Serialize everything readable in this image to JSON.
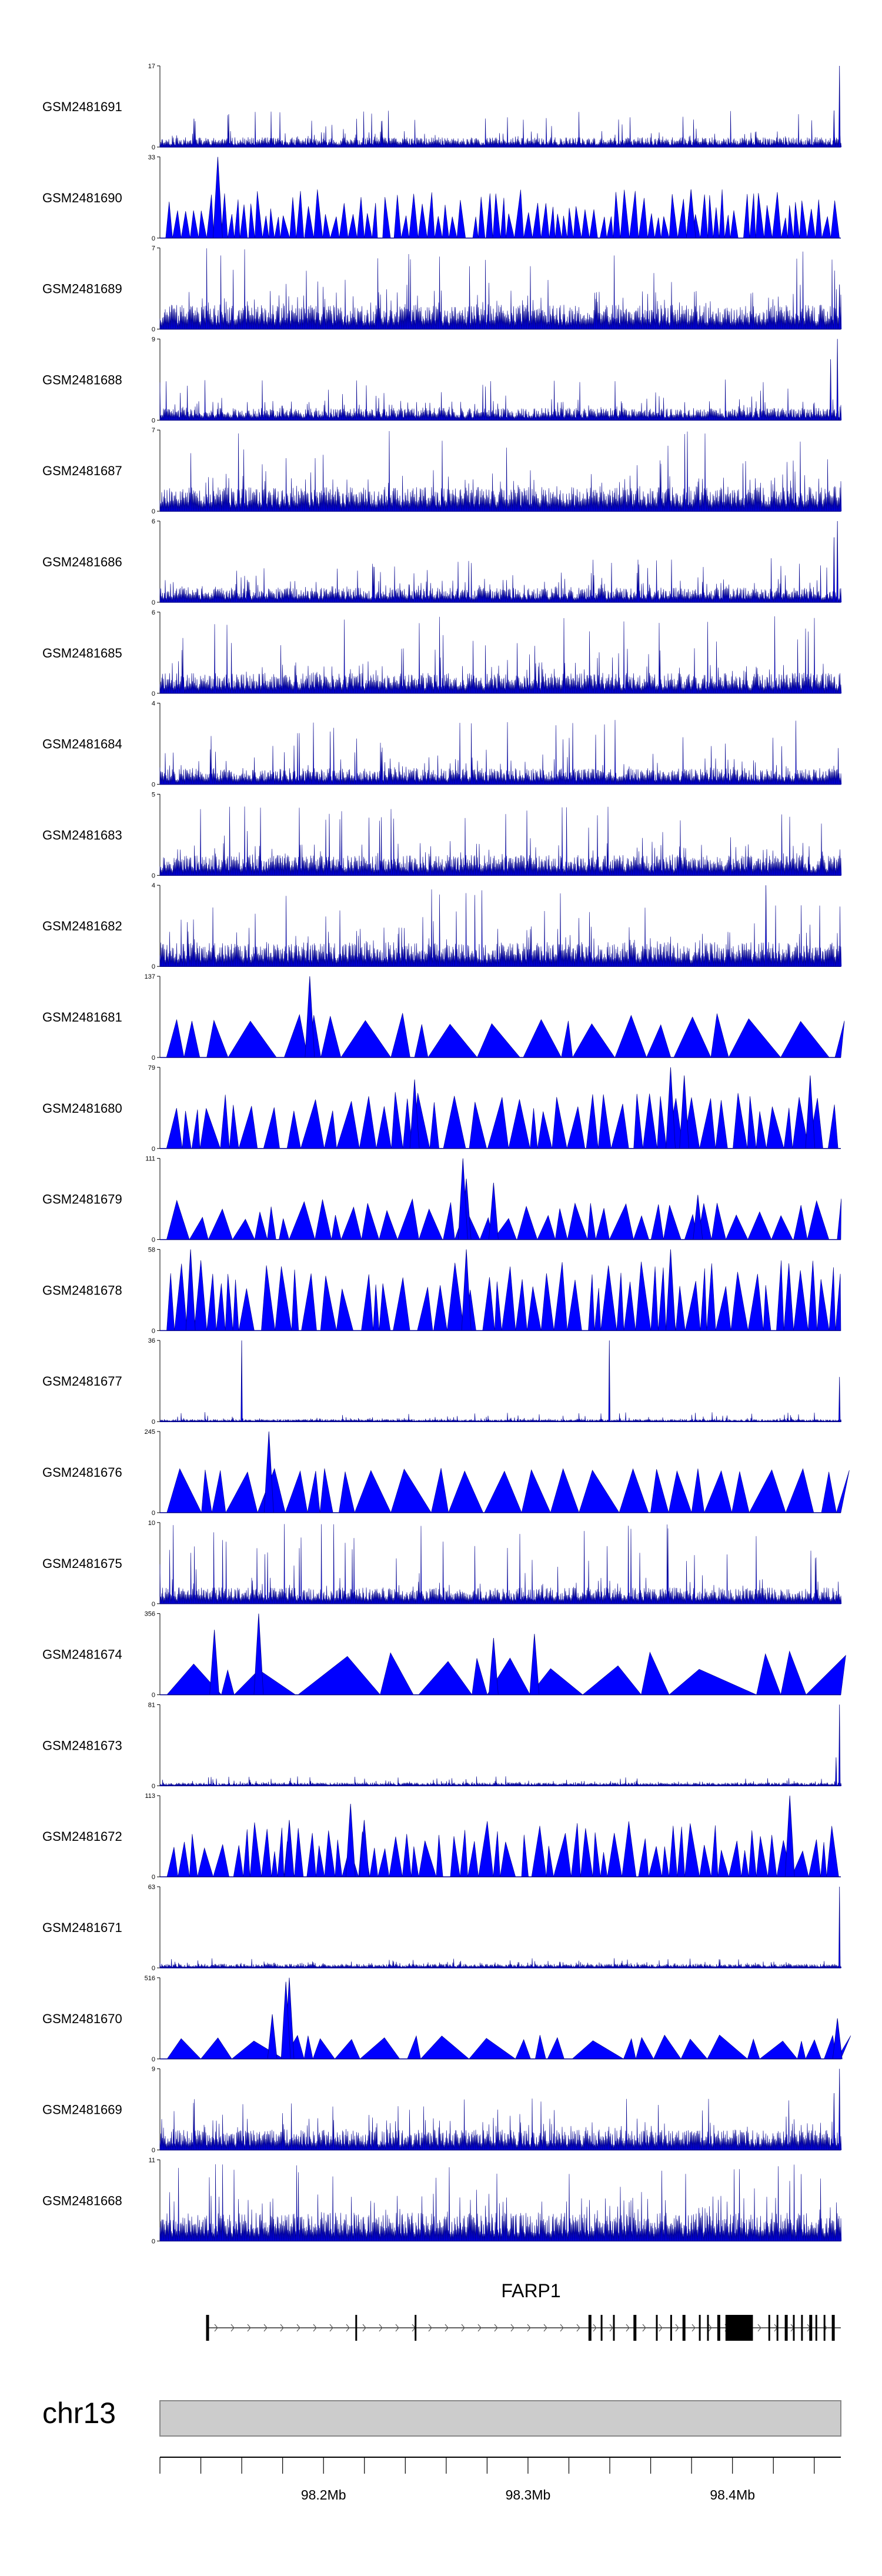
{
  "chart_data": {
    "type": "genome-browser-coverage",
    "chromosome": "chr13",
    "region_mb": [
      98.12,
      98.453
    ],
    "genome_axis": {
      "ticks_mb": [
        98.12,
        98.14,
        98.16,
        98.18,
        98.2,
        98.22,
        98.24,
        98.26,
        98.28,
        98.3,
        98.32,
        98.34,
        98.36,
        98.38,
        98.4,
        98.42,
        98.44
      ],
      "labels": [
        {
          "mb": 98.2,
          "text": "98.2Mb"
        },
        {
          "mb": 98.3,
          "text": "98.3Mb"
        },
        {
          "mb": 98.4,
          "text": "98.4Mb"
        }
      ]
    },
    "gene": {
      "name": "FARP1",
      "start_mb": 98.143,
      "end_mb": 98.453,
      "strand": "+",
      "exons_mb": [
        98.143,
        98.216,
        98.245,
        98.33,
        98.336,
        98.342,
        98.352,
        98.363,
        98.37,
        98.376,
        98.384,
        98.388,
        98.393,
        98.397,
        98.401,
        98.405,
        98.418,
        98.422,
        98.426,
        98.43,
        98.434,
        98.438,
        98.441,
        98.445,
        98.449
      ],
      "cds_block_mb": [
        98.397,
        98.41
      ]
    },
    "tracks": [
      {
        "name": "GSM2481691",
        "ymax": "17",
        "style": "bars",
        "seed": 11,
        "base": 0.12,
        "peak": 0.45,
        "spikes": [
          [
            0.998,
            1.0
          ],
          [
            0.99,
            0.45
          ],
          [
            0.05,
            0.35
          ]
        ]
      },
      {
        "name": "GSM2481690",
        "ymax": "33",
        "style": "triangles",
        "seed": 23,
        "base": 0.25,
        "peak": 0.6,
        "step": [
          9,
          16
        ],
        "spikes": [
          [
            0.085,
            1.0
          ],
          [
            0.78,
            0.6
          ]
        ]
      },
      {
        "name": "GSM2481689",
        "ymax": "7",
        "style": "bars",
        "seed": 37,
        "base": 0.3,
        "peak": 1.0,
        "spikes": [
          [
            0.998,
            0.55
          ]
        ]
      },
      {
        "name": "GSM2481688",
        "ymax": "9",
        "style": "bars",
        "seed": 41,
        "base": 0.15,
        "peak": 0.5,
        "spikes": [
          [
            0.995,
            1.0
          ],
          [
            0.985,
            0.75
          ]
        ]
      },
      {
        "name": "GSM2481687",
        "ymax": "7",
        "style": "bars",
        "seed": 53,
        "base": 0.3,
        "peak": 1.0,
        "spikes": []
      },
      {
        "name": "GSM2481686",
        "ymax": "6",
        "style": "bars",
        "seed": 61,
        "base": 0.18,
        "peak": 0.55,
        "spikes": [
          [
            0.995,
            1.0
          ],
          [
            0.99,
            0.8
          ]
        ]
      },
      {
        "name": "GSM2481685",
        "ymax": "6",
        "style": "bars",
        "seed": 71,
        "base": 0.25,
        "peak": 0.95,
        "spikes": []
      },
      {
        "name": "GSM2481684",
        "ymax": "4",
        "style": "bars",
        "seed": 83,
        "base": 0.2,
        "peak": 0.8,
        "spikes": []
      },
      {
        "name": "GSM2481683",
        "ymax": "5",
        "style": "bars",
        "seed": 97,
        "base": 0.25,
        "peak": 0.85,
        "spikes": []
      },
      {
        "name": "GSM2481682",
        "ymax": "4",
        "style": "bars",
        "seed": 101,
        "base": 0.3,
        "peak": 0.95,
        "spikes": [
          [
            0.89,
            1.0
          ]
        ]
      },
      {
        "name": "GSM2481681",
        "ymax": "137",
        "style": "triangles",
        "seed": 109,
        "base": 0.4,
        "peak": 0.55,
        "step": [
          18,
          90
        ],
        "spikes": [
          [
            0.22,
            1.0
          ]
        ]
      },
      {
        "name": "GSM2481680",
        "ymax": "79",
        "style": "triangles",
        "seed": 113,
        "base": 0.45,
        "peak": 0.7,
        "step": [
          12,
          40
        ],
        "spikes": [
          [
            0.374,
            0.85
          ],
          [
            0.75,
            1.0
          ],
          [
            0.77,
            0.9
          ],
          [
            0.955,
            0.9
          ]
        ]
      },
      {
        "name": "GSM2481679",
        "ymax": "111",
        "style": "triangles",
        "seed": 127,
        "base": 0.25,
        "peak": 0.55,
        "step": [
          14,
          45
        ],
        "spikes": [
          [
            0.45,
            0.75
          ],
          [
            0.445,
            1.0
          ],
          [
            0.49,
            0.7
          ],
          [
            0.79,
            0.55
          ]
        ]
      },
      {
        "name": "GSM2481678",
        "ymax": "58",
        "style": "triangles",
        "seed": 131,
        "base": 0.5,
        "peak": 0.9,
        "step": [
          10,
          30
        ],
        "spikes": [
          [
            0.045,
            1.0
          ],
          [
            0.45,
            1.0
          ],
          [
            0.75,
            1.0
          ]
        ]
      },
      {
        "name": "GSM2481677",
        "ymax": "36",
        "style": "bars",
        "seed": 137,
        "base": 0.03,
        "peak": 0.12,
        "spikes": [
          [
            0.12,
            1.0
          ],
          [
            0.66,
            1.0
          ],
          [
            0.998,
            0.55
          ]
        ]
      },
      {
        "name": "GSM2481676",
        "ymax": "245",
        "style": "triangles",
        "seed": 149,
        "base": 0.5,
        "peak": 0.55,
        "step": [
          16,
          70
        ],
        "spikes": [
          [
            0.16,
            1.0
          ]
        ]
      },
      {
        "name": "GSM2481675",
        "ymax": "10",
        "style": "bars",
        "seed": 151,
        "base": 0.2,
        "peak": 1.0,
        "spikes": []
      },
      {
        "name": "GSM2481674",
        "ymax": "356",
        "style": "triangles",
        "seed": 157,
        "base": 0.3,
        "peak": 0.55,
        "step": [
          20,
          160
        ],
        "spikes": [
          [
            0.145,
            1.0
          ],
          [
            0.08,
            0.8
          ],
          [
            0.49,
            0.7
          ],
          [
            0.55,
            0.75
          ]
        ]
      },
      {
        "name": "GSM2481673",
        "ymax": "81",
        "style": "bars",
        "seed": 163,
        "base": 0.04,
        "peak": 0.12,
        "spikes": [
          [
            0.998,
            1.0
          ],
          [
            0.993,
            0.35
          ]
        ]
      },
      {
        "name": "GSM2481672",
        "ymax": "113",
        "style": "triangles",
        "seed": 167,
        "base": 0.3,
        "peak": 0.7,
        "step": [
          10,
          30
        ],
        "spikes": [
          [
            0.19,
            0.7
          ],
          [
            0.28,
            0.9
          ],
          [
            0.3,
            0.7
          ],
          [
            0.925,
            1.0
          ]
        ]
      },
      {
        "name": "GSM2481671",
        "ymax": "63",
        "style": "bars",
        "seed": 173,
        "base": 0.05,
        "peak": 0.12,
        "spikes": [
          [
            0.998,
            1.0
          ]
        ]
      },
      {
        "name": "GSM2481670",
        "ymax": "516",
        "style": "triangles",
        "seed": 179,
        "base": 0.22,
        "peak": 0.3,
        "step": [
          12,
          100
        ],
        "spikes": [
          [
            0.19,
            1.0
          ],
          [
            0.185,
            0.95
          ],
          [
            0.165,
            0.55
          ],
          [
            0.995,
            0.5
          ]
        ]
      },
      {
        "name": "GSM2481669",
        "ymax": "9",
        "style": "bars",
        "seed": 181,
        "base": 0.25,
        "peak": 0.65,
        "spikes": [
          [
            0.998,
            1.0
          ],
          [
            0.99,
            0.7
          ]
        ]
      },
      {
        "name": "GSM2481668",
        "ymax": "11",
        "style": "bars",
        "seed": 191,
        "base": 0.35,
        "peak": 0.95,
        "spikes": []
      }
    ]
  },
  "colors": {
    "signal": "#0000ff",
    "signal_edge": "#00008b",
    "axis": "#000000",
    "gene": "#000000",
    "ideogram_fill": "#cccccc",
    "ideogram_stroke": "#888888"
  }
}
